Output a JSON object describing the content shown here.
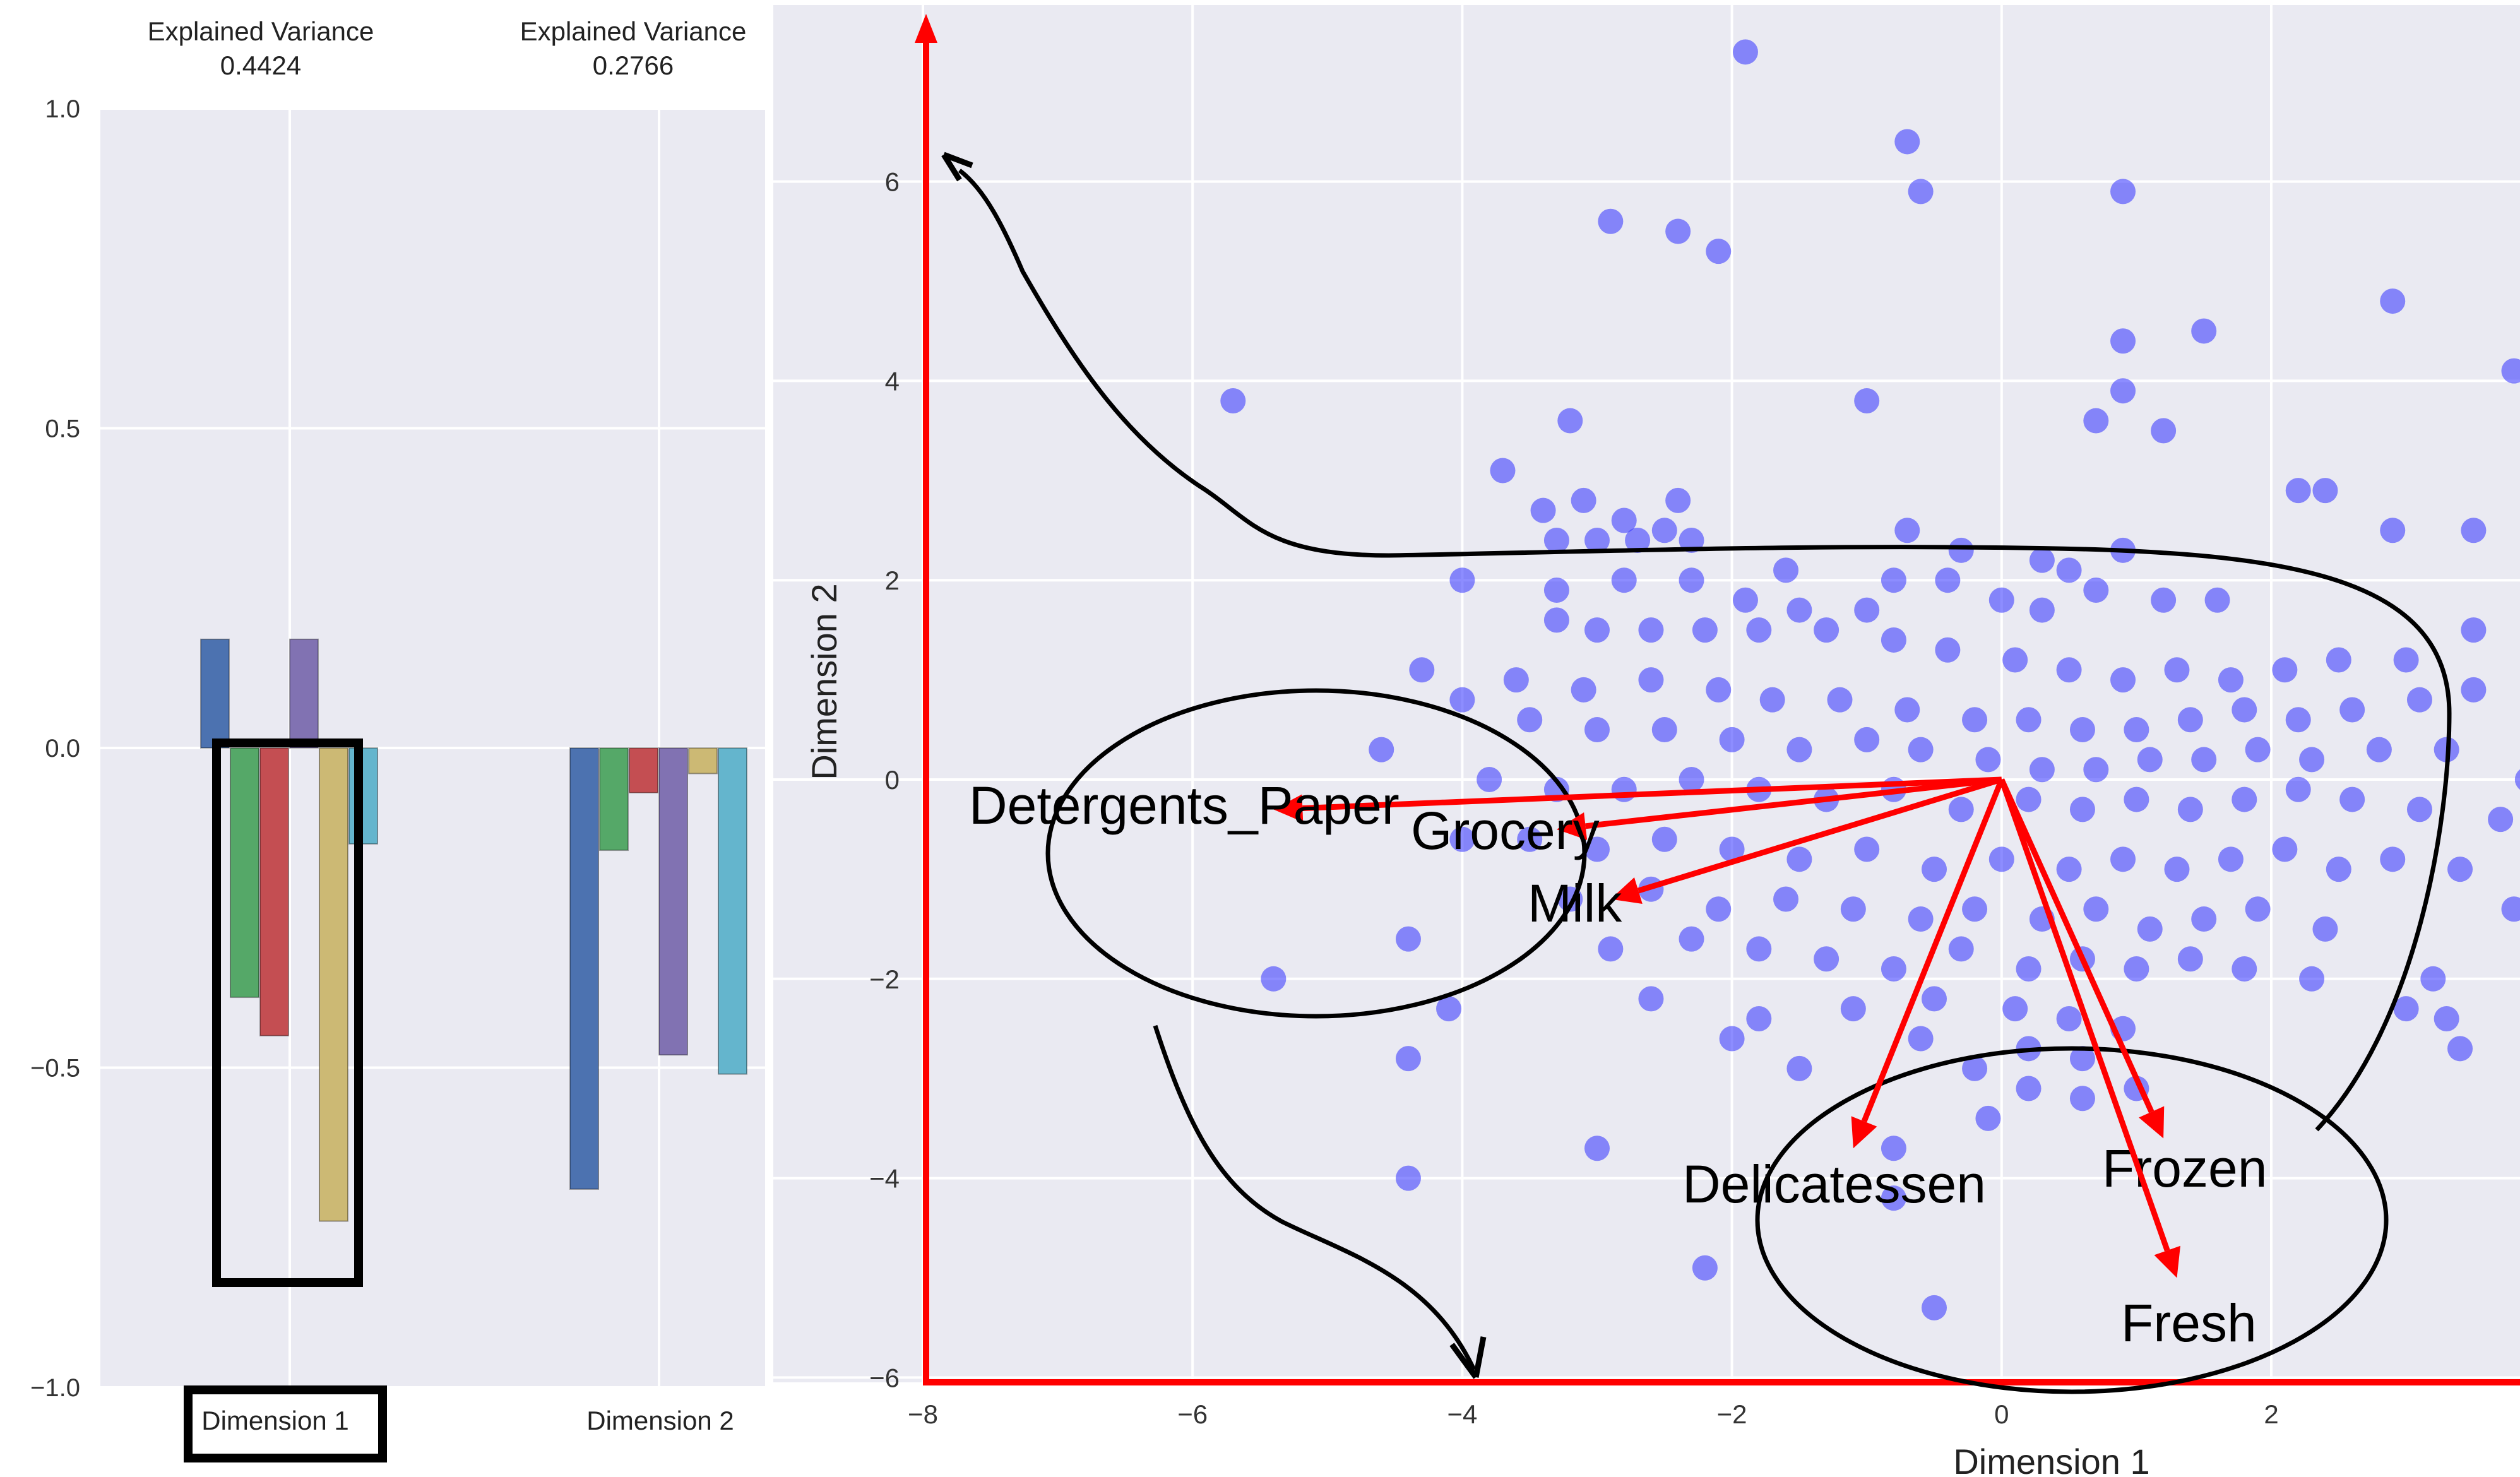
{
  "colors": {
    "plot_bg": "#eaeaf2",
    "grid": "#ffffff",
    "point": "#2f2fff",
    "arrow": "#ff0000",
    "annotation": "#000000",
    "bar_palette": [
      "#4c72b0",
      "#55a868",
      "#c44e52",
      "#8172b2",
      "#ccb974",
      "#64b5cd"
    ]
  },
  "chart_data": [
    {
      "type": "bar",
      "categories": [
        "Dimension 1",
        "Dimension 2"
      ],
      "column_headers": [
        {
          "title": "Explained Variance",
          "value": "0.4424"
        },
        {
          "title": "Explained Variance",
          "value": "0.2766"
        }
      ],
      "series": [
        {
          "values": [
            0.17,
            -0.69
          ]
        },
        {
          "values": [
            -0.39,
            -0.16
          ]
        },
        {
          "values": [
            -0.45,
            -0.07
          ]
        },
        {
          "values": [
            0.17,
            -0.48
          ]
        },
        {
          "values": [
            -0.74,
            -0.04
          ]
        },
        {
          "values": [
            -0.15,
            -0.51
          ]
        }
      ],
      "ylim": [
        -1.0,
        1.0
      ],
      "yticks": [
        "1.0",
        "0.5",
        "0.0",
        "−0.5",
        "−1.0"
      ],
      "grid": true
    },
    {
      "type": "scatter",
      "xlabel": "Dimension 1",
      "ylabel": "Dimension 2",
      "xlim": [
        -8,
        3.8
      ],
      "ylim": [
        -6,
        7.8
      ],
      "xticks": [
        "−8",
        "−6",
        "−4",
        "−2",
        "0",
        "2"
      ],
      "yticks": [
        "6",
        "4",
        "2",
        "0",
        "−2",
        "−4",
        "−6"
      ],
      "grid": true,
      "feature_vectors": [
        {
          "label": "Detergents_Paper",
          "x": -5.4,
          "y": -0.3
        },
        {
          "label": "Grocery",
          "x": -3.3,
          "y": -0.5
        },
        {
          "label": "Milk",
          "x": -2.9,
          "y": -1.2
        },
        {
          "label": "Delicatessen",
          "x": -1.1,
          "y": -3.7
        },
        {
          "label": "Frozen",
          "x": 1.2,
          "y": -3.6
        },
        {
          "label": "Fresh",
          "x": 1.3,
          "y": -5.0
        }
      ],
      "points": [
        [
          -1.9,
          7.3
        ],
        [
          -0.7,
          6.4
        ],
        [
          -0.6,
          5.9
        ],
        [
          0.9,
          5.9
        ],
        [
          -2.9,
          5.6
        ],
        [
          -2.4,
          5.5
        ],
        [
          -2.1,
          5.3
        ],
        [
          2.9,
          4.8
        ],
        [
          1.5,
          4.5
        ],
        [
          0.9,
          4.4
        ],
        [
          3.8,
          4.1
        ],
        [
          -5.7,
          3.8
        ],
        [
          -1.0,
          3.8
        ],
        [
          0.9,
          3.9
        ],
        [
          0.7,
          3.6
        ],
        [
          1.2,
          3.5
        ],
        [
          -3.2,
          3.6
        ],
        [
          -3.7,
          3.1
        ],
        [
          2.4,
          2.9
        ],
        [
          2.2,
          2.9
        ],
        [
          2.9,
          2.5
        ],
        [
          3.5,
          2.5
        ],
        [
          -3.4,
          2.7
        ],
        [
          -3.1,
          2.8
        ],
        [
          -2.8,
          2.6
        ],
        [
          -2.4,
          2.8
        ],
        [
          -2.5,
          2.5
        ],
        [
          -3.3,
          2.4
        ],
        [
          -3.0,
          2.4
        ],
        [
          -2.7,
          2.4
        ],
        [
          -2.3,
          2.4
        ],
        [
          -1.6,
          2.1
        ],
        [
          -0.8,
          2.0
        ],
        [
          -0.3,
          2.3
        ],
        [
          0.3,
          2.2
        ],
        [
          0.5,
          2.1
        ],
        [
          0.9,
          2.3
        ],
        [
          -0.7,
          2.5
        ],
        [
          -4.0,
          2.0
        ],
        [
          -3.3,
          1.9
        ],
        [
          -2.8,
          2.0
        ],
        [
          -2.3,
          2.0
        ],
        [
          -1.9,
          1.8
        ],
        [
          -1.5,
          1.7
        ],
        [
          -1.0,
          1.7
        ],
        [
          -0.4,
          2.0
        ],
        [
          0.0,
          1.8
        ],
        [
          0.3,
          1.7
        ],
        [
          0.7,
          1.9
        ],
        [
          1.2,
          1.8
        ],
        [
          1.6,
          1.8
        ],
        [
          3.5,
          1.5
        ],
        [
          -3.3,
          1.6
        ],
        [
          -3.0,
          1.5
        ],
        [
          -2.6,
          1.5
        ],
        [
          -2.2,
          1.5
        ],
        [
          -1.8,
          1.5
        ],
        [
          -1.3,
          1.5
        ],
        [
          -0.8,
          1.4
        ],
        [
          -0.4,
          1.3
        ],
        [
          0.1,
          1.2
        ],
        [
          0.5,
          1.1
        ],
        [
          0.9,
          1.0
        ],
        [
          1.3,
          1.1
        ],
        [
          1.7,
          1.0
        ],
        [
          2.1,
          1.1
        ],
        [
          2.5,
          1.2
        ],
        [
          3.0,
          1.2
        ],
        [
          -4.3,
          1.1
        ],
        [
          -3.6,
          1.0
        ],
        [
          -3.1,
          0.9
        ],
        [
          -2.6,
          1.0
        ],
        [
          -2.1,
          0.9
        ],
        [
          -1.7,
          0.8
        ],
        [
          -1.2,
          0.8
        ],
        [
          -0.7,
          0.7
        ],
        [
          -0.2,
          0.6
        ],
        [
          0.2,
          0.6
        ],
        [
          0.6,
          0.5
        ],
        [
          1.0,
          0.5
        ],
        [
          1.4,
          0.6
        ],
        [
          1.8,
          0.7
        ],
        [
          2.2,
          0.6
        ],
        [
          2.6,
          0.7
        ],
        [
          3.1,
          0.8
        ],
        [
          3.5,
          0.9
        ],
        [
          -4.0,
          0.8
        ],
        [
          -3.5,
          0.6
        ],
        [
          -3.0,
          0.5
        ],
        [
          -2.5,
          0.5
        ],
        [
          -2.0,
          0.4
        ],
        [
          -1.5,
          0.3
        ],
        [
          -1.0,
          0.4
        ],
        [
          -0.6,
          0.3
        ],
        [
          -0.1,
          0.2
        ],
        [
          0.3,
          0.1
        ],
        [
          0.7,
          0.1
        ],
        [
          1.1,
          0.2
        ],
        [
          1.5,
          0.2
        ],
        [
          1.9,
          0.3
        ],
        [
          2.3,
          0.2
        ],
        [
          2.8,
          0.3
        ],
        [
          3.3,
          0.3
        ],
        [
          -4.6,
          0.3
        ],
        [
          -3.8,
          0.0
        ],
        [
          -3.3,
          -0.1
        ],
        [
          -2.8,
          -0.1
        ],
        [
          -2.3,
          0.0
        ],
        [
          -1.8,
          -0.1
        ],
        [
          -1.3,
          -0.2
        ],
        [
          -0.8,
          -0.1
        ],
        [
          -0.3,
          -0.3
        ],
        [
          0.2,
          -0.2
        ],
        [
          0.6,
          -0.3
        ],
        [
          1.0,
          -0.2
        ],
        [
          1.4,
          -0.3
        ],
        [
          1.8,
          -0.2
        ],
        [
          2.2,
          -0.1
        ],
        [
          2.6,
          -0.2
        ],
        [
          3.1,
          -0.3
        ],
        [
          3.7,
          -0.4
        ],
        [
          -4.0,
          -0.6
        ],
        [
          -3.5,
          -0.6
        ],
        [
          -3.0,
          -0.7
        ],
        [
          -2.5,
          -0.6
        ],
        [
          -2.0,
          -0.7
        ],
        [
          -1.5,
          -0.8
        ],
        [
          -1.0,
          -0.7
        ],
        [
          -0.5,
          -0.9
        ],
        [
          0.0,
          -0.8
        ],
        [
          0.5,
          -0.9
        ],
        [
          0.9,
          -0.8
        ],
        [
          1.3,
          -0.9
        ],
        [
          1.7,
          -0.8
        ],
        [
          2.1,
          -0.7
        ],
        [
          2.5,
          -0.9
        ],
        [
          2.9,
          -0.8
        ],
        [
          3.4,
          -0.9
        ],
        [
          -3.2,
          -1.2
        ],
        [
          -2.6,
          -1.1
        ],
        [
          -2.1,
          -1.3
        ],
        [
          -1.6,
          -1.2
        ],
        [
          -1.1,
          -1.3
        ],
        [
          -0.6,
          -1.4
        ],
        [
          -0.2,
          -1.3
        ],
        [
          0.3,
          -1.4
        ],
        [
          0.7,
          -1.3
        ],
        [
          1.1,
          -1.5
        ],
        [
          1.5,
          -1.4
        ],
        [
          1.9,
          -1.3
        ],
        [
          2.4,
          -1.5
        ],
        [
          3.8,
          -1.3
        ],
        [
          -4.4,
          -1.6
        ],
        [
          -2.9,
          -1.7
        ],
        [
          -2.3,
          -1.6
        ],
        [
          -1.8,
          -1.7
        ],
        [
          -1.3,
          -1.8
        ],
        [
          -0.8,
          -1.9
        ],
        [
          -0.3,
          -1.7
        ],
        [
          0.2,
          -1.9
        ],
        [
          0.6,
          -1.8
        ],
        [
          1.0,
          -1.9
        ],
        [
          1.4,
          -1.8
        ],
        [
          1.8,
          -1.9
        ],
        [
          2.3,
          -2.0
        ],
        [
          3.2,
          -2.0
        ],
        [
          -5.4,
          -2.0
        ],
        [
          -4.1,
          -2.3
        ],
        [
          -2.6,
          -2.2
        ],
        [
          -1.8,
          -2.4
        ],
        [
          -1.1,
          -2.3
        ],
        [
          -0.5,
          -2.2
        ],
        [
          0.1,
          -2.3
        ],
        [
          0.5,
          -2.4
        ],
        [
          0.9,
          -2.5
        ],
        [
          3.3,
          -2.4
        ],
        [
          3.0,
          -2.3
        ],
        [
          -2.0,
          -2.6
        ],
        [
          -0.6,
          -2.6
        ],
        [
          0.2,
          -2.7
        ],
        [
          0.6,
          -2.8
        ],
        [
          3.4,
          -2.7
        ],
        [
          -4.4,
          -2.8
        ],
        [
          -1.5,
          -2.9
        ],
        [
          -0.2,
          -2.9
        ],
        [
          0.2,
          -3.1
        ],
        [
          0.6,
          -3.2
        ],
        [
          1.0,
          -3.1
        ],
        [
          -0.1,
          -3.4
        ],
        [
          -3.0,
          -3.7
        ],
        [
          -0.8,
          -3.7
        ],
        [
          -4.4,
          -4.0
        ],
        [
          -0.8,
          -4.2
        ],
        [
          -2.2,
          -4.9
        ],
        [
          -0.5,
          -5.3
        ],
        [
          3.9,
          -0.0
        ]
      ]
    }
  ]
}
